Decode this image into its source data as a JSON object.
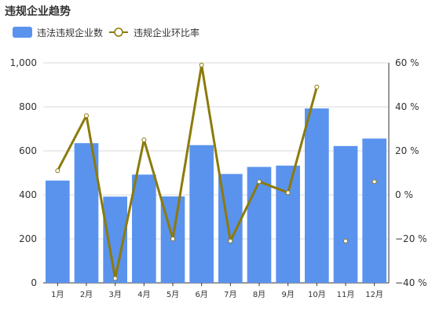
{
  "title": "违规企业趋势",
  "chart_data": {
    "type": "bar",
    "categories": [
      "1月",
      "2月",
      "3月",
      "4月",
      "5月",
      "6月",
      "7月",
      "8月",
      "9月",
      "10月",
      "11月",
      "12月"
    ],
    "series": [
      {
        "name": "违法违规企业数",
        "kind": "bar",
        "axis": "left",
        "values": [
          465,
          635,
          392,
          492,
          393,
          626,
          495,
          527,
          533,
          793,
          622,
          656
        ]
      },
      {
        "name": "违规企业环比率",
        "kind": "line",
        "axis": "right",
        "values": [
          11,
          36,
          -38,
          25,
          -20,
          59,
          -21,
          6,
          1,
          49,
          null,
          null
        ],
        "markers_only": [
          null,
          null,
          null,
          null,
          null,
          null,
          null,
          null,
          null,
          null,
          -21,
          6
        ]
      }
    ],
    "y_left": {
      "ylim": [
        0,
        1000
      ],
      "ticks": [
        "0",
        "200",
        "400",
        "600",
        "800",
        "1,000"
      ]
    },
    "y_right": {
      "ylim": [
        -40,
        60
      ],
      "ticks": [
        "−40 %",
        "−20 %",
        "0 %",
        "20 %",
        "40 %",
        "60 %"
      ]
    },
    "legend_position": "top-left",
    "grid": true,
    "colors": {
      "bar": "#5a93ee",
      "line": "#8c7a0a",
      "marker_fill": "#ffffff",
      "grid": "#d9d9d9"
    }
  }
}
